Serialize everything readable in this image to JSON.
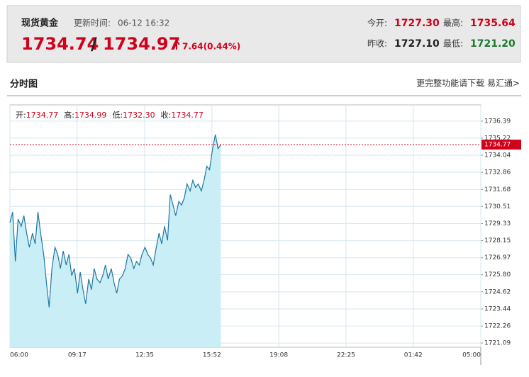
{
  "header": {
    "name": "现货黄金",
    "update_label": "更新时间:",
    "update_time": "06-12 16:32",
    "price": "1734.74",
    "separator": "/",
    "price2": "1734.97",
    "change": "7.64(0.44%)",
    "stats": [
      {
        "label": "今开:",
        "value": "1727.30",
        "color": "#d0021b"
      },
      {
        "label": "最高:",
        "value": "1735.64",
        "color": "#d0021b"
      },
      {
        "label": "昨收:",
        "value": "1727.10",
        "color": "#222222"
      },
      {
        "label": "最低:",
        "value": "1721.20",
        "color": "#1a7a2e"
      }
    ]
  },
  "section": {
    "title": "分时图",
    "link": "更完整功能请下载 易汇通>"
  },
  "chart_data": {
    "type": "area",
    "info": [
      {
        "label": "开:",
        "value": "1734.77"
      },
      {
        "label": "高:",
        "value": "1734.99"
      },
      {
        "label": "低:",
        "value": "1732.30"
      },
      {
        "label": "收:",
        "value": "1734.77"
      }
    ],
    "x": [
      "06:00",
      "06:08",
      "06:16",
      "06:24",
      "06:33",
      "06:41",
      "06:49",
      "06:57",
      "07:06",
      "07:14",
      "07:22",
      "07:30",
      "07:39",
      "07:47",
      "07:55",
      "08:03",
      "08:12",
      "08:20",
      "08:28",
      "08:36",
      "08:45",
      "08:53",
      "09:01",
      "09:09",
      "09:18",
      "09:26",
      "09:34",
      "09:42",
      "09:51",
      "09:59",
      "10:07",
      "10:15",
      "10:24",
      "10:32",
      "10:40",
      "10:48",
      "10:57",
      "11:05",
      "11:13",
      "11:21",
      "11:30",
      "11:38",
      "11:46",
      "11:54",
      "12:03",
      "12:11",
      "12:19",
      "12:27",
      "12:36",
      "12:44",
      "12:52",
      "13:00",
      "13:09",
      "13:17",
      "13:25",
      "13:33",
      "13:42",
      "13:50",
      "13:58",
      "14:06",
      "14:15",
      "14:23",
      "14:31",
      "14:39",
      "14:48",
      "14:56",
      "15:04",
      "15:12",
      "15:21",
      "15:29",
      "15:37",
      "15:45",
      "15:54",
      "16:02",
      "16:10",
      "16:18"
    ],
    "values": [
      1729.39,
      1730.12,
      1726.71,
      1729.63,
      1729.14,
      1729.87,
      1728.66,
      1727.69,
      1728.66,
      1727.93,
      1730.12,
      1728.66,
      1727.2,
      1725.25,
      1723.55,
      1726.23,
      1727.69,
      1727.2,
      1726.23,
      1727.44,
      1726.47,
      1727.2,
      1725.74,
      1726.23,
      1724.52,
      1725.98,
      1724.77,
      1723.79,
      1725.5,
      1724.77,
      1726.23,
      1725.5,
      1725.25,
      1725.74,
      1726.47,
      1725.5,
      1726.23,
      1725.25,
      1724.52,
      1725.5,
      1725.74,
      1726.23,
      1727.2,
      1726.96,
      1726.23,
      1726.71,
      1726.47,
      1727.2,
      1727.69,
      1727.2,
      1726.96,
      1726.47,
      1727.69,
      1728.66,
      1727.93,
      1729.14,
      1728.17,
      1731.33,
      1730.6,
      1729.87,
      1730.85,
      1730.6,
      1731.09,
      1732.06,
      1731.58,
      1732.31,
      1731.82,
      1732.06,
      1731.58,
      1732.31,
      1733.28,
      1733.04,
      1734.49,
      1735.47,
      1734.49,
      1734.77
    ],
    "color": "#1f78a4",
    "fill_color": "#c9eef5",
    "last": {
      "value": 1734.77,
      "color": "#d0021b"
    },
    "xlim": [
      "06:00",
      "05:00"
    ],
    "xticks": [
      "06:00",
      "09:17",
      "12:35",
      "15:52",
      "19:08",
      "22:25",
      "01:42",
      "05:00"
    ],
    "ylim": [
      1720.8,
      1737.51
    ],
    "yticks": [
      1736.39,
      1735.22,
      1734.04,
      1732.86,
      1731.68,
      1730.51,
      1729.33,
      1728.15,
      1726.97,
      {
        "value": 1725.8,
        "label": "1725.80"
      },
      1724.62,
      1723.44,
      1722.26,
      1721.09
    ],
    "grid": true
  }
}
